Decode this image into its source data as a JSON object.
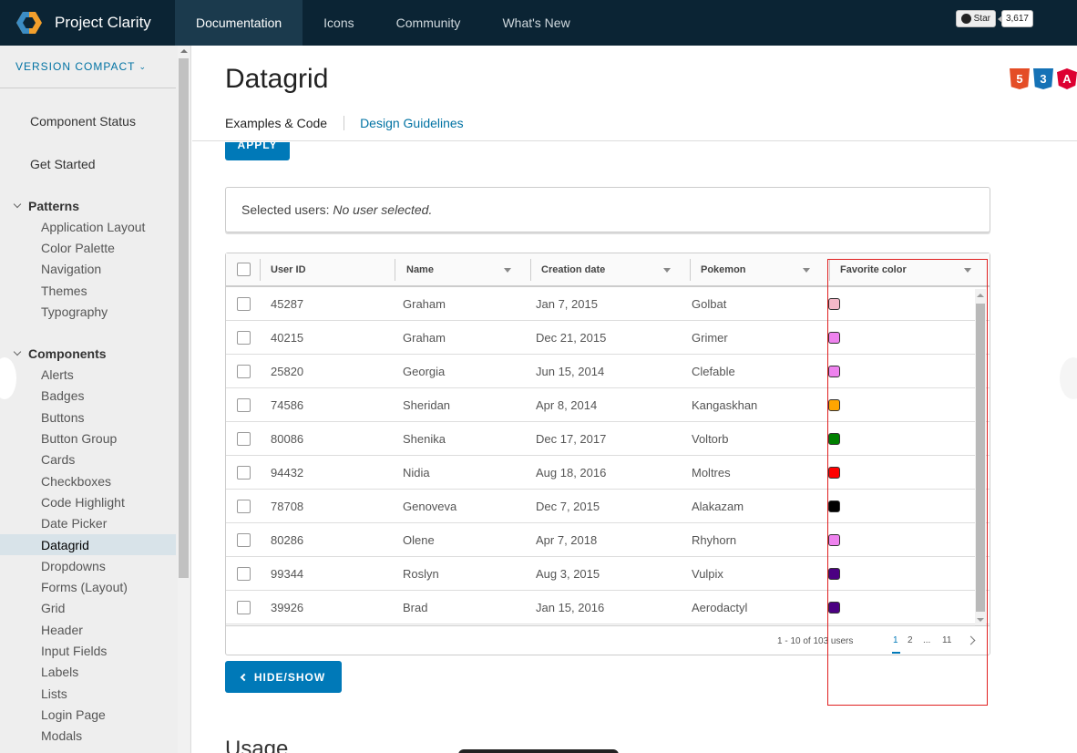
{
  "header": {
    "brand": "Project Clarity",
    "tabs": [
      "Documentation",
      "Icons",
      "Community",
      "What's New"
    ],
    "github_star": "Star",
    "github_count": "3,617"
  },
  "sidebar": {
    "version": "VERSION COMPACT",
    "top_items": [
      "Component Status",
      "Get Started"
    ],
    "patterns_label": "Patterns",
    "patterns": [
      "Application Layout",
      "Color Palette",
      "Navigation",
      "Themes",
      "Typography"
    ],
    "components_label": "Components",
    "components": [
      "Alerts",
      "Badges",
      "Buttons",
      "Button Group",
      "Cards",
      "Checkboxes",
      "Code Highlight",
      "Date Picker",
      "Datagrid",
      "Dropdowns",
      "Forms (Layout)",
      "Grid",
      "Header",
      "Input Fields",
      "Labels",
      "Lists",
      "Login Page",
      "Modals"
    ],
    "active": "Datagrid"
  },
  "main": {
    "title": "Datagrid",
    "subtabs": [
      "Examples & Code",
      "Design Guidelines"
    ],
    "apply_label": "APPLY",
    "selected_prefix": "Selected users:",
    "selected_value": "No user selected.",
    "columns": [
      "User ID",
      "Name",
      "Creation date",
      "Pokemon",
      "Favorite color"
    ],
    "rows": [
      {
        "id": "45287",
        "name": "Graham",
        "date": "Jan 7, 2015",
        "pokemon": "Golbat",
        "color": "#f4b8c8"
      },
      {
        "id": "40215",
        "name": "Graham",
        "date": "Dec 21, 2015",
        "pokemon": "Grimer",
        "color": "#ee82ee"
      },
      {
        "id": "25820",
        "name": "Georgia",
        "date": "Jun 15, 2014",
        "pokemon": "Clefable",
        "color": "#ee82ee"
      },
      {
        "id": "74586",
        "name": "Sheridan",
        "date": "Apr 8, 2014",
        "pokemon": "Kangaskhan",
        "color": "#ffa500"
      },
      {
        "id": "80086",
        "name": "Shenika",
        "date": "Dec 17, 2017",
        "pokemon": "Voltorb",
        "color": "#008000"
      },
      {
        "id": "94432",
        "name": "Nidia",
        "date": "Aug 18, 2016",
        "pokemon": "Moltres",
        "color": "#ff0000"
      },
      {
        "id": "78708",
        "name": "Genoveva",
        "date": "Dec 7, 2015",
        "pokemon": "Alakazam",
        "color": "#000000"
      },
      {
        "id": "80286",
        "name": "Olene",
        "date": "Apr 7, 2018",
        "pokemon": "Rhyhorn",
        "color": "#ee82ee"
      },
      {
        "id": "99344",
        "name": "Roslyn",
        "date": "Aug 3, 2015",
        "pokemon": "Vulpix",
        "color": "#4b0082"
      },
      {
        "id": "39926",
        "name": "Brad",
        "date": "Jan 15, 2016",
        "pokemon": "Aerodactyl",
        "color": "#4b0082"
      }
    ],
    "pagination": {
      "summary": "1 - 10 of 103 users",
      "pages": [
        "1",
        "2",
        "...",
        "11"
      ],
      "current": "1"
    },
    "hide_show_label": "HIDE/SHOW",
    "usage_heading": "Usage"
  }
}
